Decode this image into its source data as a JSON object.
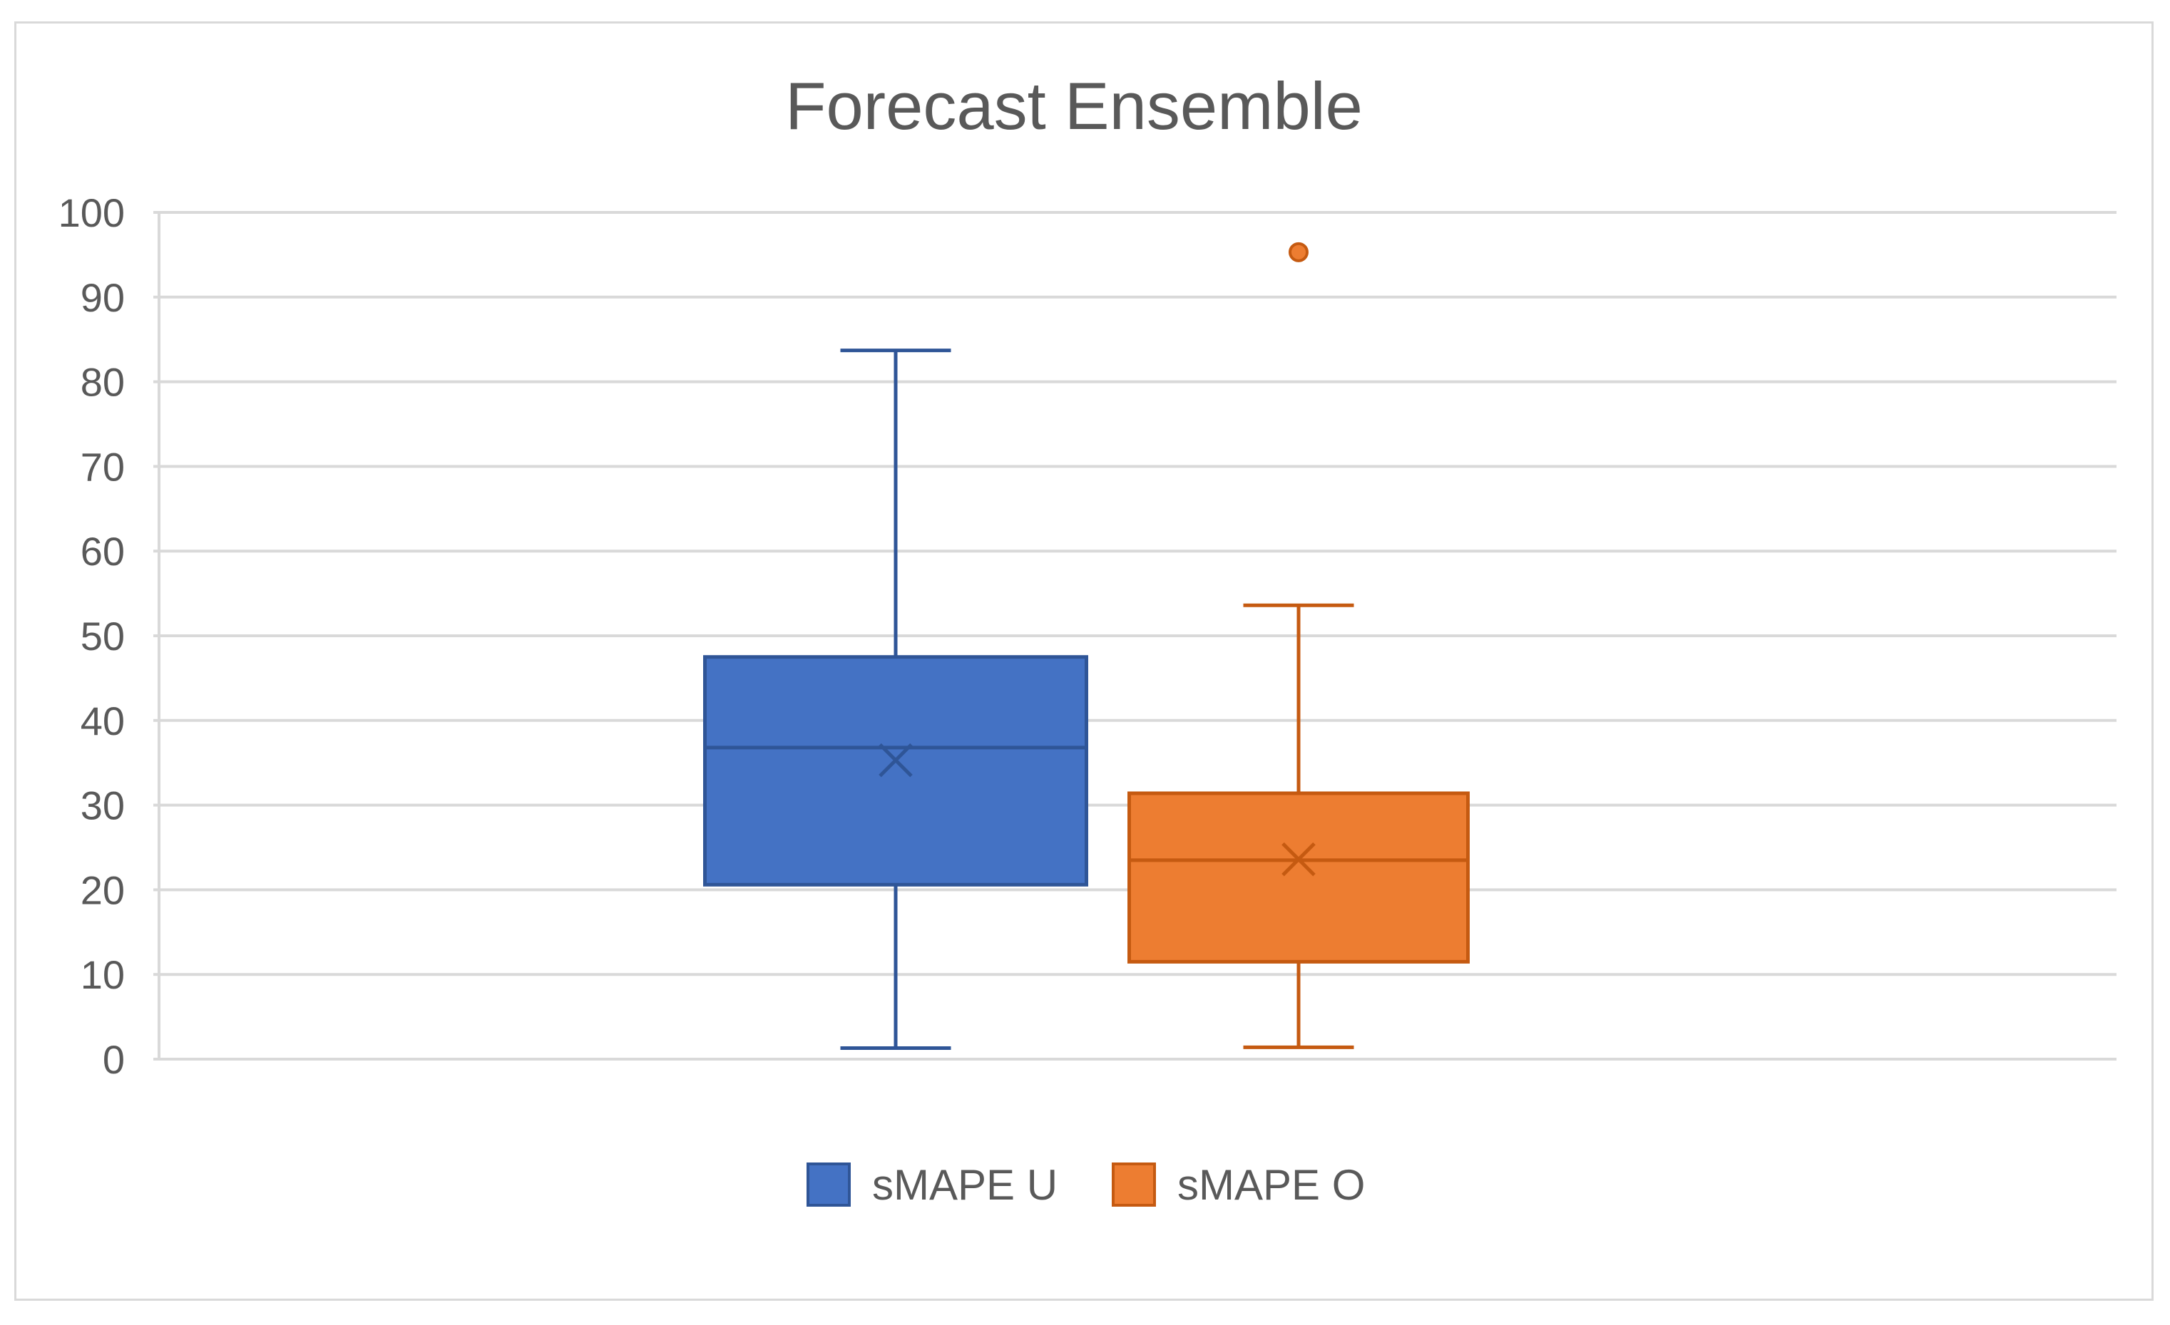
{
  "chart_data": {
    "type": "box",
    "title": "Forecast Ensemble",
    "xlabel": "",
    "ylabel": "",
    "ylim": [
      0,
      100
    ],
    "yticks": [
      0,
      10,
      20,
      30,
      40,
      50,
      60,
      70,
      80,
      90,
      100
    ],
    "grid": true,
    "legend_position": "bottom",
    "series": [
      {
        "name": "sMAPE U",
        "color": "#4472c4",
        "edge_color": "#2f5597",
        "whisker_low": 1.3,
        "q1": 20.6,
        "median": 36.8,
        "mean": 35.3,
        "q3": 47.5,
        "whisker_high": 83.7,
        "outliers": []
      },
      {
        "name": "sMAPE O",
        "color": "#ed7d31",
        "edge_color": "#c55a11",
        "whisker_low": 1.4,
        "q1": 11.5,
        "median": 23.5,
        "mean": 23.6,
        "q3": 31.4,
        "whisker_high": 53.6,
        "outliers": [
          95.3
        ]
      }
    ]
  }
}
